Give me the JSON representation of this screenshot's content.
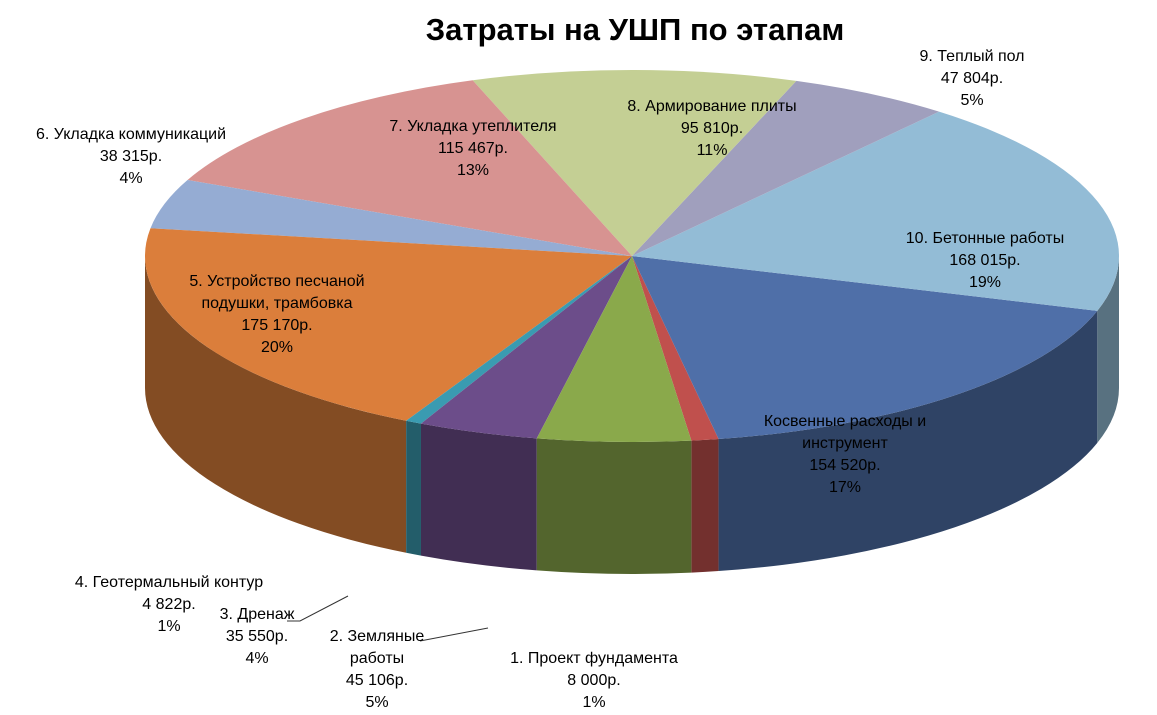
{
  "chart_data": {
    "type": "pie",
    "title": "Затраты на УШП по этапам",
    "legend": "none",
    "slices": [
      {
        "name": "1. Проект фундамента",
        "value": "8 000р.",
        "amount": 8000,
        "percent": "1%",
        "color": "#c0504d"
      },
      {
        "name": "Косвенные расходы и инструмент",
        "value": "154 520р.",
        "amount": 154520,
        "percent": "17%",
        "color": "#4f6fa8"
      },
      {
        "name": "10. Бетонные работы",
        "value": "168 015р.",
        "amount": 168015,
        "percent": "19%",
        "color": "#93bcd6"
      },
      {
        "name": "9. Теплый пол",
        "value": "47 804р.",
        "amount": 47804,
        "percent": "5%",
        "color": "#a09fbd"
      },
      {
        "name": "8. Армирование плиты",
        "value": "95 810р.",
        "amount": 95810,
        "percent": "11%",
        "color": "#c4cf94"
      },
      {
        "name": "7. Укладка утеплителя",
        "value": "115 467р.",
        "amount": 115467,
        "percent": "13%",
        "color": "#d79391"
      },
      {
        "name": "6. Укладка коммуникаций",
        "value": "38 315р.",
        "amount": 38315,
        "percent": "4%",
        "color": "#95acd3"
      },
      {
        "name": "5. Устройство песчаной подушки, трамбовка",
        "value": "175 170р.",
        "amount": 175170,
        "percent": "20%",
        "color": "#db7e3b"
      },
      {
        "name": "4. Геотермальный контур",
        "value": "4 822р.",
        "amount": 4822,
        "percent": "1%",
        "color": "#3a9bb1"
      },
      {
        "name": "3. Дренаж",
        "value": "35 550р.",
        "amount": 35550,
        "percent": "4%",
        "color": "#6c4d8a"
      },
      {
        "name": "2. Земляные работы",
        "value": "45 106р.",
        "amount": 45106,
        "percent": "5%",
        "color": "#8aa94b"
      }
    ]
  }
}
